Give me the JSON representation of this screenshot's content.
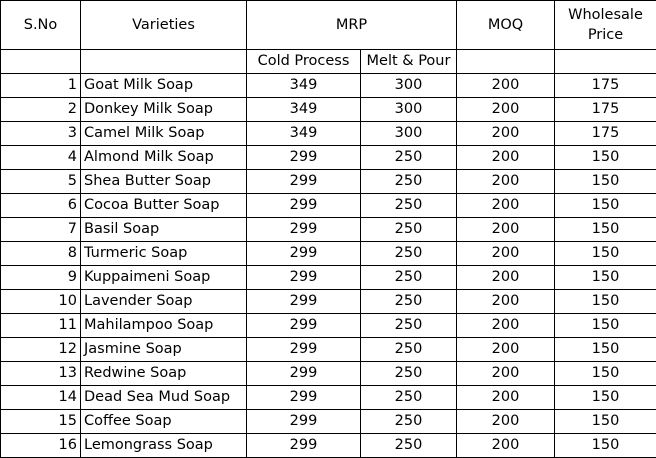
{
  "headers": {
    "sno": "S.No",
    "varieties": "Varieties",
    "mrp": "MRP",
    "moq": "MOQ",
    "wholesale_line1": "Wholesale",
    "wholesale_line2": "Price",
    "cold_process": "Cold Process",
    "melt_pour": "Melt & Pour"
  },
  "rows": [
    {
      "sno": "1",
      "variety": "Goat Milk Soap",
      "cold": "349",
      "melt": "300",
      "moq": "200",
      "wholesale": "175"
    },
    {
      "sno": "2",
      "variety": "Donkey Milk Soap",
      "cold": "349",
      "melt": "300",
      "moq": "200",
      "wholesale": "175"
    },
    {
      "sno": "3",
      "variety": "Camel Milk Soap",
      "cold": "349",
      "melt": "300",
      "moq": "200",
      "wholesale": "175"
    },
    {
      "sno": "4",
      "variety": "Almond Milk Soap",
      "cold": "299",
      "melt": "250",
      "moq": "200",
      "wholesale": "150"
    },
    {
      "sno": "5",
      "variety": "Shea Butter Soap",
      "cold": "299",
      "melt": "250",
      "moq": "200",
      "wholesale": "150"
    },
    {
      "sno": "6",
      "variety": "Cocoa Butter Soap",
      "cold": "299",
      "melt": "250",
      "moq": "200",
      "wholesale": "150"
    },
    {
      "sno": "7",
      "variety": "Basil Soap",
      "cold": "299",
      "melt": "250",
      "moq": "200",
      "wholesale": "150"
    },
    {
      "sno": "8",
      "variety": "Turmeric Soap",
      "cold": "299",
      "melt": "250",
      "moq": "200",
      "wholesale": "150"
    },
    {
      "sno": "9",
      "variety": "Kuppaimeni Soap",
      "cold": "299",
      "melt": "250",
      "moq": "200",
      "wholesale": "150"
    },
    {
      "sno": "10",
      "variety": "Lavender Soap",
      "cold": "299",
      "melt": "250",
      "moq": "200",
      "wholesale": "150"
    },
    {
      "sno": "11",
      "variety": "Mahilampoo Soap",
      "cold": "299",
      "melt": "250",
      "moq": "200",
      "wholesale": "150"
    },
    {
      "sno": "12",
      "variety": "Jasmine Soap",
      "cold": "299",
      "melt": "250",
      "moq": "200",
      "wholesale": "150"
    },
    {
      "sno": "13",
      "variety": "Redwine Soap",
      "cold": "299",
      "melt": "250",
      "moq": "200",
      "wholesale": "150"
    },
    {
      "sno": "14",
      "variety": "Dead Sea Mud Soap",
      "cold": "299",
      "melt": "250",
      "moq": "200",
      "wholesale": "150"
    },
    {
      "sno": "15",
      "variety": "Coffee Soap",
      "cold": "299",
      "melt": "250",
      "moq": "200",
      "wholesale": "150"
    },
    {
      "sno": "16",
      "variety": "Lemongrass Soap",
      "cold": "299",
      "melt": "250",
      "moq": "200",
      "wholesale": "150"
    }
  ]
}
